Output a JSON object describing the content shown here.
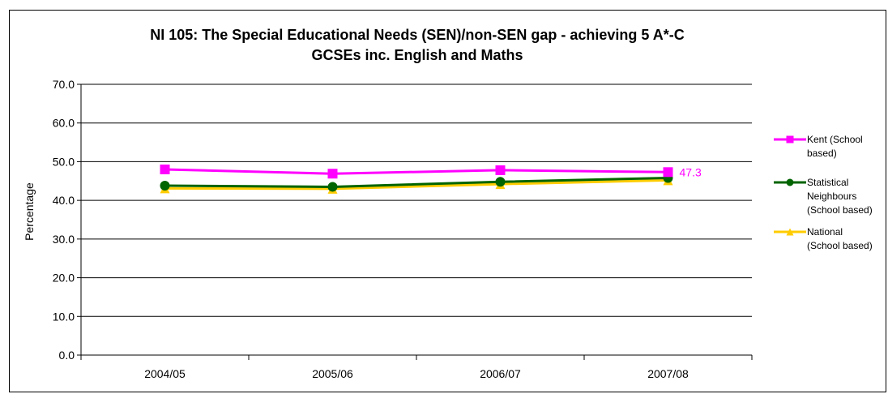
{
  "chart_data": {
    "type": "line",
    "title_line1": "NI 105: The Special Educational Needs (SEN)/non-SEN gap - achieving 5 A*-C",
    "title_line2": "GCSEs inc. English and Maths",
    "ylabel": "Percentage",
    "xlabel": "",
    "ylim": [
      0,
      70
    ],
    "yticks": [
      "0.0",
      "10.0",
      "20.0",
      "30.0",
      "40.0",
      "50.0",
      "60.0",
      "70.0"
    ],
    "categories": [
      "2004/05",
      "2005/06",
      "2006/07",
      "2007/08"
    ],
    "grid": true,
    "legend_position": "right",
    "series": [
      {
        "name_lines": [
          "Kent (School",
          "based)"
        ],
        "color": "#ff00ff",
        "marker": "square",
        "values": [
          48.0,
          46.9,
          47.8,
          47.3
        ]
      },
      {
        "name_lines": [
          "Statistical",
          "Neighbours",
          "(School based)"
        ],
        "color": "#006400",
        "marker": "circle",
        "values": [
          43.8,
          43.5,
          44.8,
          45.8
        ]
      },
      {
        "name_lines": [
          "National",
          "(School based)"
        ],
        "color": "#ffcc00",
        "marker": "triangle",
        "values": [
          43.1,
          43.0,
          44.2,
          45.2
        ]
      }
    ],
    "annotations": [
      {
        "series": 0,
        "point": 3,
        "text": "47.3",
        "color": "#ff00ff"
      }
    ]
  }
}
